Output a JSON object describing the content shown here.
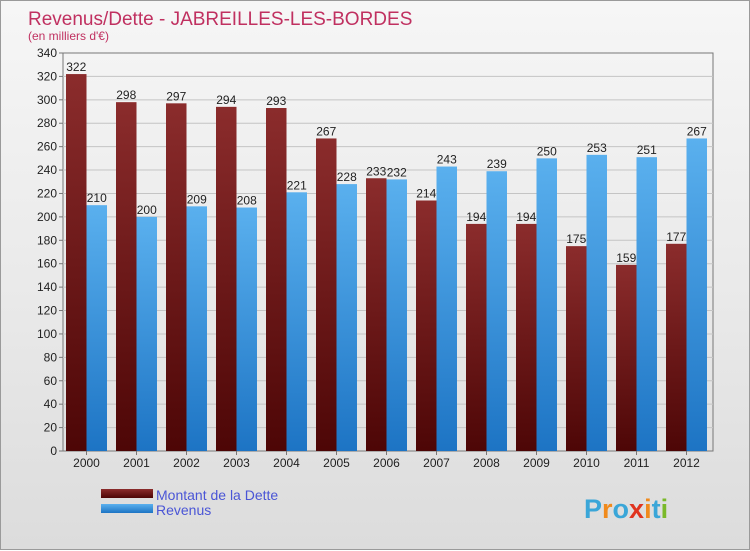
{
  "chart_data": {
    "type": "bar",
    "title": "Revenus/Dette - JABREILLES-LES-BORDES",
    "subtitle": "(en milliers d'€)",
    "categories": [
      "2000",
      "2001",
      "2002",
      "2003",
      "2004",
      "2005",
      "2006",
      "2007",
      "2008",
      "2009",
      "2010",
      "2011",
      "2012"
    ],
    "series": [
      {
        "name": "Montant de la Dette",
        "color": "#7a1c1c",
        "values": [
          322,
          298,
          297,
          294,
          293,
          267,
          233,
          214,
          194,
          194,
          175,
          159,
          177
        ]
      },
      {
        "name": "Revenus",
        "color": "#4aa3e8",
        "values": [
          210,
          200,
          209,
          208,
          221,
          228,
          232,
          243,
          239,
          250,
          253,
          251,
          267
        ]
      }
    ],
    "yticks": [
      0,
      20,
      40,
      60,
      80,
      100,
      120,
      140,
      160,
      180,
      200,
      220,
      240,
      260,
      280,
      300,
      320,
      340
    ],
    "ylim": [
      0,
      340
    ],
    "grid": true,
    "legend_position": "bottom-left"
  },
  "logo": {
    "text": "Proxiti",
    "letters": [
      "P",
      "r",
      "o",
      "x",
      "i",
      "t",
      "i"
    ],
    "colors": [
      "#3aa6d8",
      "#f08a1c",
      "#3aa6d8",
      "#e0341f",
      "#f08a1c",
      "#3aa6d8",
      "#7ab929"
    ]
  }
}
